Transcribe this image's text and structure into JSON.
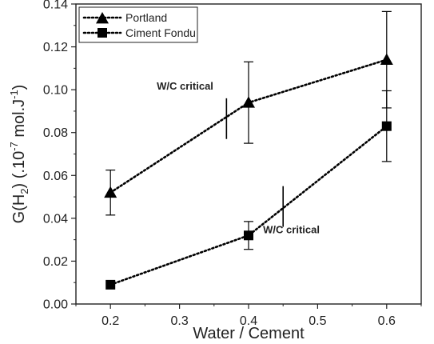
{
  "chart_data": {
    "type": "line",
    "xlabel": "Water / Cement",
    "ylabel": {
      "base": "G(H",
      "sub": "2",
      "mid": ") (.10",
      "sup": "-7",
      "unit": " mol.J",
      "unit_sup": "-1",
      "close": ")"
    },
    "xlim": [
      0.15,
      0.65
    ],
    "ylim": [
      0.0,
      0.14
    ],
    "x_ticks": [
      0.2,
      0.3,
      0.4,
      0.5,
      0.6
    ],
    "x_tick_labels": [
      "0.2",
      "0.3",
      "0.4",
      "0.5",
      "0.6"
    ],
    "y_ticks": [
      0.0,
      0.02,
      0.04,
      0.06,
      0.08,
      0.1,
      0.12,
      0.14
    ],
    "y_tick_labels": [
      "0.00",
      "0.02",
      "0.04",
      "0.06",
      "0.08",
      "0.10",
      "0.12",
      "0.14"
    ],
    "grid": false,
    "legend_position": "top-left",
    "series": [
      {
        "name": "Portland",
        "marker": "triangle",
        "line_style": "dotted",
        "color": "#000000",
        "x": [
          0.2,
          0.4,
          0.6
        ],
        "y": [
          0.052,
          0.094,
          0.114
        ],
        "error": [
          0.0105,
          0.019,
          0.0225
        ]
      },
      {
        "name": "Ciment Fondu",
        "marker": "square",
        "line_style": "dotted",
        "color": "#000000",
        "x": [
          0.2,
          0.4,
          0.6
        ],
        "y": [
          0.009,
          0.032,
          0.083
        ],
        "error": [
          0,
          0.0065,
          0.0165
        ]
      }
    ],
    "annotations": [
      {
        "text": "W/C critical",
        "text_anchor": [
          0.308,
          0.1
        ]
      },
      {
        "text": "W/C critical",
        "text_anchor": [
          0.462,
          0.033
        ]
      }
    ],
    "critical_markers": [
      {
        "x": 0.368,
        "y_low": 0.077,
        "y_high": 0.096
      },
      {
        "x": 0.45,
        "y_low": 0.036,
        "y_high": 0.055
      }
    ]
  }
}
